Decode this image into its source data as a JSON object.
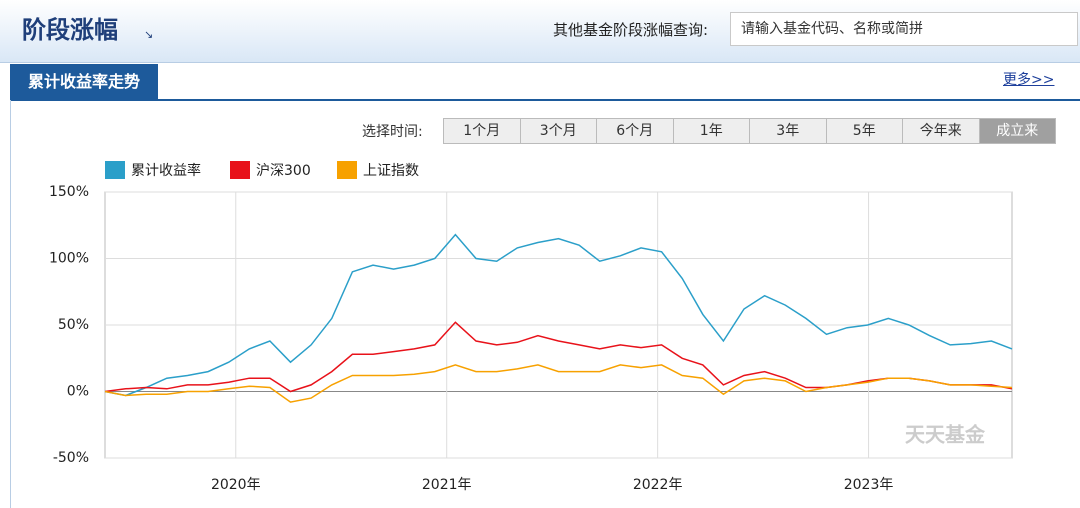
{
  "header": {
    "title": "阶段涨幅",
    "query_label": "其他基金阶段涨幅查询:",
    "query_placeholder": "请输入基金代码、名称或简拼"
  },
  "tab": {
    "title": "累计收益率走势",
    "more": "更多>>"
  },
  "time_selector": {
    "label": "选择时间:",
    "options": [
      "1个月",
      "3个月",
      "6个月",
      "1年",
      "3年",
      "5年",
      "今年来",
      "成立来"
    ],
    "selected": 7
  },
  "watermark": "天天基金",
  "chart_data": {
    "type": "line",
    "xlim": [
      2019.38,
      2023.68
    ],
    "xticks": [
      {
        "value": 2020,
        "label": "2020年"
      },
      {
        "value": 2021,
        "label": "2021年"
      },
      {
        "value": 2022,
        "label": "2022年"
      },
      {
        "value": 2023,
        "label": "2023年"
      }
    ],
    "ylim": [
      -50,
      150
    ],
    "yticks": [
      {
        "value": 150,
        "label": "150%"
      },
      {
        "value": 100,
        "label": "100%"
      },
      {
        "value": 50,
        "label": "50%"
      },
      {
        "value": 0,
        "label": "0%"
      },
      {
        "value": -50,
        "label": "-50%"
      }
    ],
    "grid": true,
    "series": [
      {
        "name": "累计收益率",
        "color": "#2b9fc9",
        "values": [
          0,
          -3,
          3,
          10,
          12,
          15,
          22,
          32,
          38,
          22,
          35,
          55,
          90,
          95,
          92,
          95,
          100,
          118,
          100,
          98,
          108,
          112,
          115,
          110,
          98,
          102,
          108,
          105,
          85,
          58,
          38,
          62,
          72,
          65,
          55,
          43,
          48,
          50,
          55,
          50,
          42,
          35,
          36,
          38,
          32
        ]
      },
      {
        "name": "沪深300",
        "color": "#e8121a",
        "values": [
          0,
          2,
          3,
          2,
          5,
          5,
          7,
          10,
          10,
          0,
          5,
          15,
          28,
          28,
          30,
          32,
          35,
          52,
          38,
          35,
          37,
          42,
          38,
          35,
          32,
          35,
          33,
          35,
          25,
          20,
          5,
          12,
          15,
          10,
          3,
          3,
          5,
          8,
          10,
          10,
          8,
          5,
          5,
          5,
          2
        ]
      },
      {
        "name": "上证指数",
        "color": "#f7a100",
        "values": [
          0,
          -3,
          -2,
          -2,
          0,
          0,
          2,
          4,
          3,
          -8,
          -5,
          5,
          12,
          12,
          12,
          13,
          15,
          20,
          15,
          15,
          17,
          20,
          15,
          15,
          15,
          20,
          18,
          20,
          12,
          10,
          -2,
          8,
          10,
          8,
          0,
          3,
          5,
          7,
          10,
          10,
          8,
          5,
          5,
          4,
          3
        ]
      }
    ]
  }
}
